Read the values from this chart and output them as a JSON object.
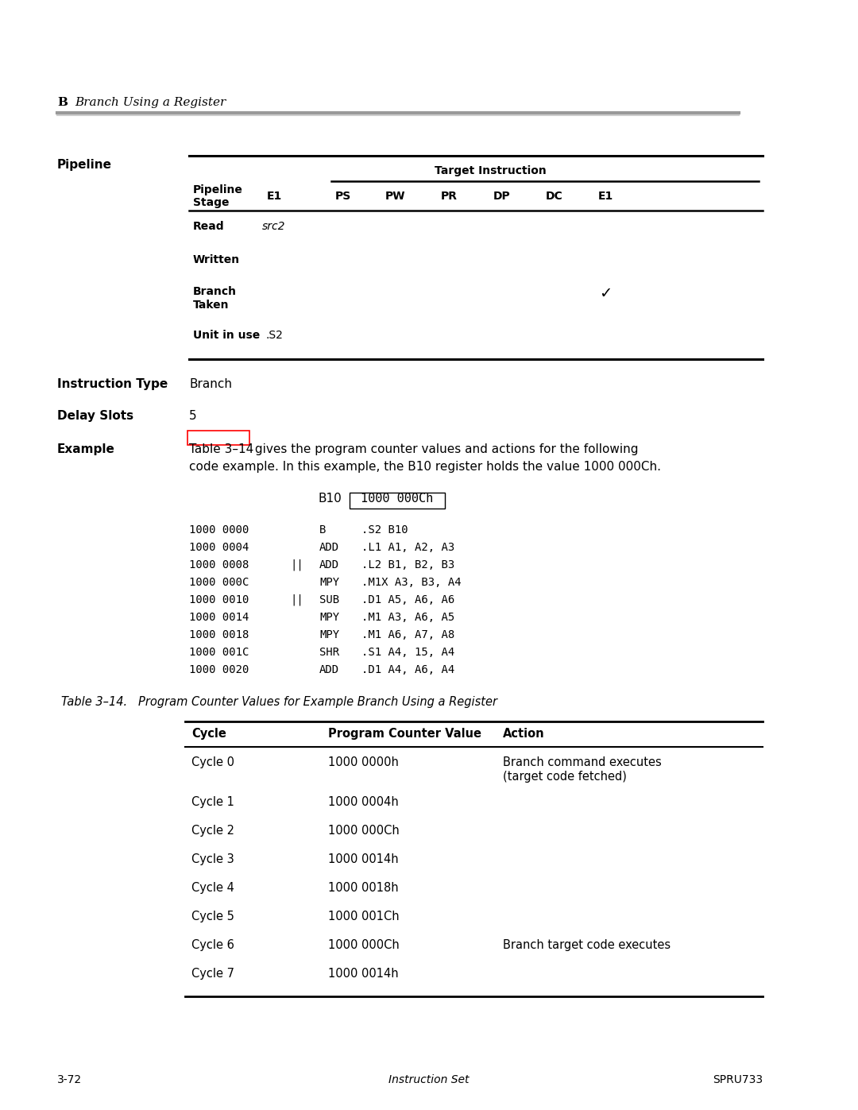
{
  "page_bg": "#ffffff",
  "header_letter": "B",
  "header_title": "Branch Using a Register",
  "section_pipeline_label": "Pipeline",
  "target_instruction_label": "Target Instruction",
  "target_cols": [
    "PS",
    "PW",
    "PR",
    "DP",
    "DC",
    "E1"
  ],
  "read_val": "src2",
  "unit_in_use_val": ".S2",
  "instruction_type_label": "Instruction Type",
  "instruction_type_val": "Branch",
  "delay_slots_label": "Delay Slots",
  "delay_slots_val": "5",
  "example_label": "Example",
  "example_link": "Table 3–14",
  "example_text1": " gives the program counter values and actions for the following",
  "example_text2": "code example. In this example, the B10 register holds the value 1000 000Ch.",
  "b10_label": "B10",
  "b10_box": "1000 000Ch",
  "code_lines": [
    [
      "1000 0000",
      "",
      "B",
      ".S2 B10"
    ],
    [
      "1000 0004",
      "",
      "ADD",
      ".L1 A1, A2, A3"
    ],
    [
      "1000 0008",
      "||",
      "ADD",
      ".L2 B1, B2, B3"
    ],
    [
      "1000 000C",
      "",
      "MPY",
      ".M1X A3, B3, A4"
    ],
    [
      "1000 0010",
      "||",
      "SUB",
      ".D1 A5, A6, A6"
    ],
    [
      "1000 0014",
      "",
      "MPY",
      ".M1 A3, A6, A5"
    ],
    [
      "1000 0018",
      "",
      "MPY",
      ".M1 A6, A7, A8"
    ],
    [
      "1000 001C",
      "",
      "SHR",
      ".S1 A4, 15, A4"
    ],
    [
      "1000 0020",
      "",
      "ADD",
      ".D1 A4, A6, A4"
    ]
  ],
  "table2_title": "Table 3–14.   Program Counter Values for Example Branch Using a Register",
  "table2_cols": [
    "Cycle",
    "Program Counter Value",
    "Action"
  ],
  "table2_rows": [
    [
      "Cycle 0",
      "1000 0000h",
      "Branch command executes\n(target code fetched)"
    ],
    [
      "Cycle 1",
      "1000 0004h",
      ""
    ],
    [
      "Cycle 2",
      "1000 000Ch",
      ""
    ],
    [
      "Cycle 3",
      "1000 0014h",
      ""
    ],
    [
      "Cycle 4",
      "1000 0018h",
      ""
    ],
    [
      "Cycle 5",
      "1000 001Ch",
      ""
    ],
    [
      "Cycle 6",
      "1000 000Ch",
      "Branch target code executes"
    ],
    [
      "Cycle 7",
      "1000 0014h",
      ""
    ]
  ],
  "footer_left": "3-72",
  "footer_center": "Instruction Set",
  "footer_right": "SPRU733"
}
